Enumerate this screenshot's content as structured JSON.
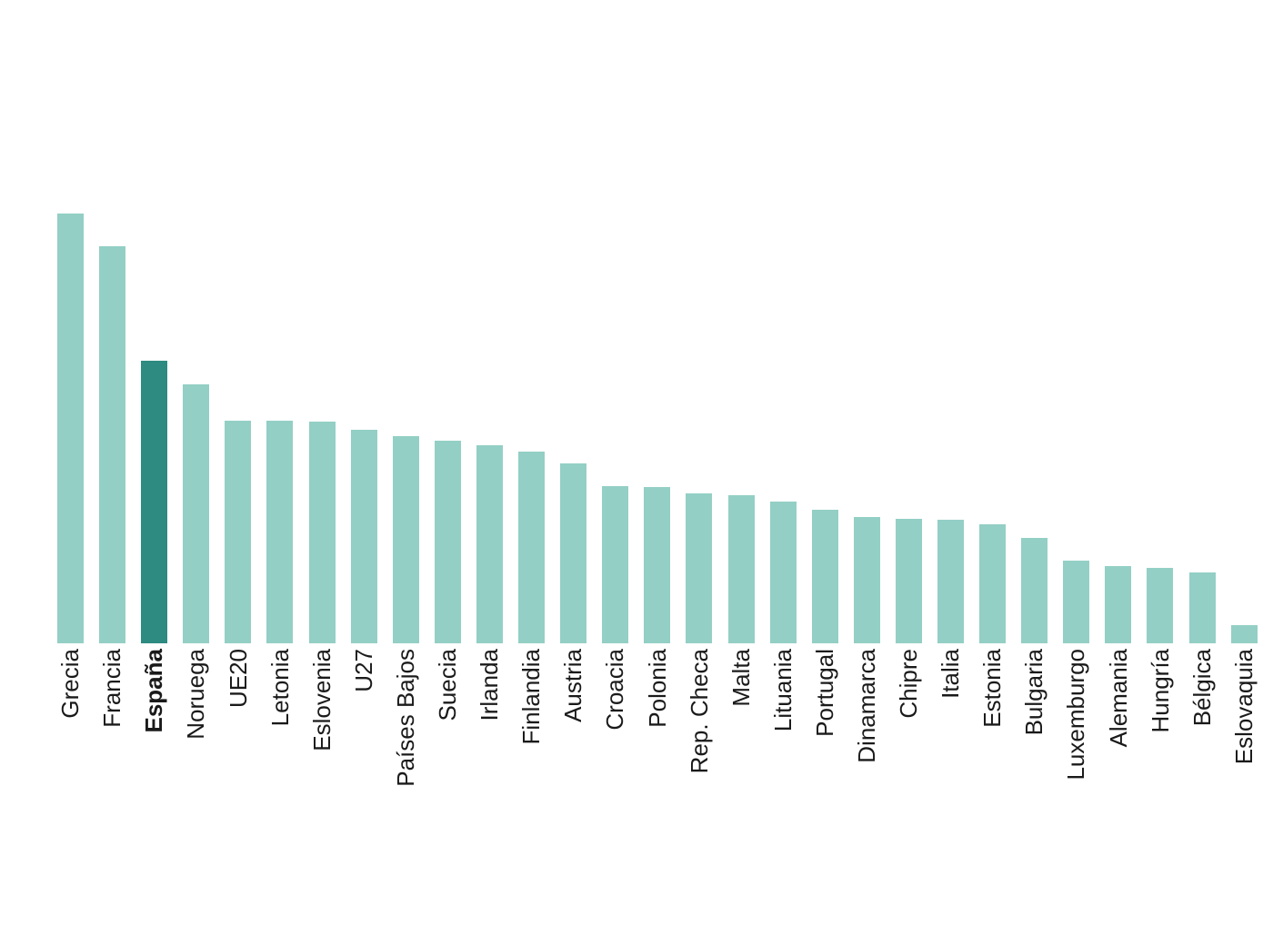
{
  "chart_data": {
    "type": "bar",
    "title": "",
    "xlabel": "",
    "ylabel": "",
    "legend": "none",
    "grid": false,
    "value_axis_visible": false,
    "units": "relative bar heights in pixels (chart shows no value axis or data labels)",
    "orientation": "vertical",
    "sort": "descending",
    "categories": [
      "Grecia",
      "Francia",
      "España",
      "Noruega",
      "UE20",
      "Letonia",
      "Eslovenia",
      "U27",
      "Países Bajos",
      "Suecia",
      "Irlanda",
      "Finlandia",
      "Austria",
      "Croacia",
      "Polonia",
      "Rep. Checa",
      "Malta",
      "Lituania",
      "Portugal",
      "Dinamarca",
      "Chipre",
      "Italia",
      "Estonia",
      "Bulgaria",
      "Luxemburgo",
      "Alemania",
      "Hungría",
      "Bélgica",
      "Eslovaquia"
    ],
    "values": [
      473,
      437,
      311,
      285,
      245,
      245,
      244,
      235,
      228,
      223,
      218,
      211,
      198,
      173,
      172,
      165,
      163,
      156,
      147,
      139,
      137,
      136,
      131,
      116,
      91,
      85,
      83,
      78,
      20
    ],
    "highlight_category": "España",
    "highlight_label_bold": true,
    "tick_label_rotation_degrees": 90,
    "colors": {
      "bar": "#93cfc5",
      "highlight": "#2e8b81",
      "label": "#1a1a1a",
      "background": "#ffffff"
    }
  }
}
